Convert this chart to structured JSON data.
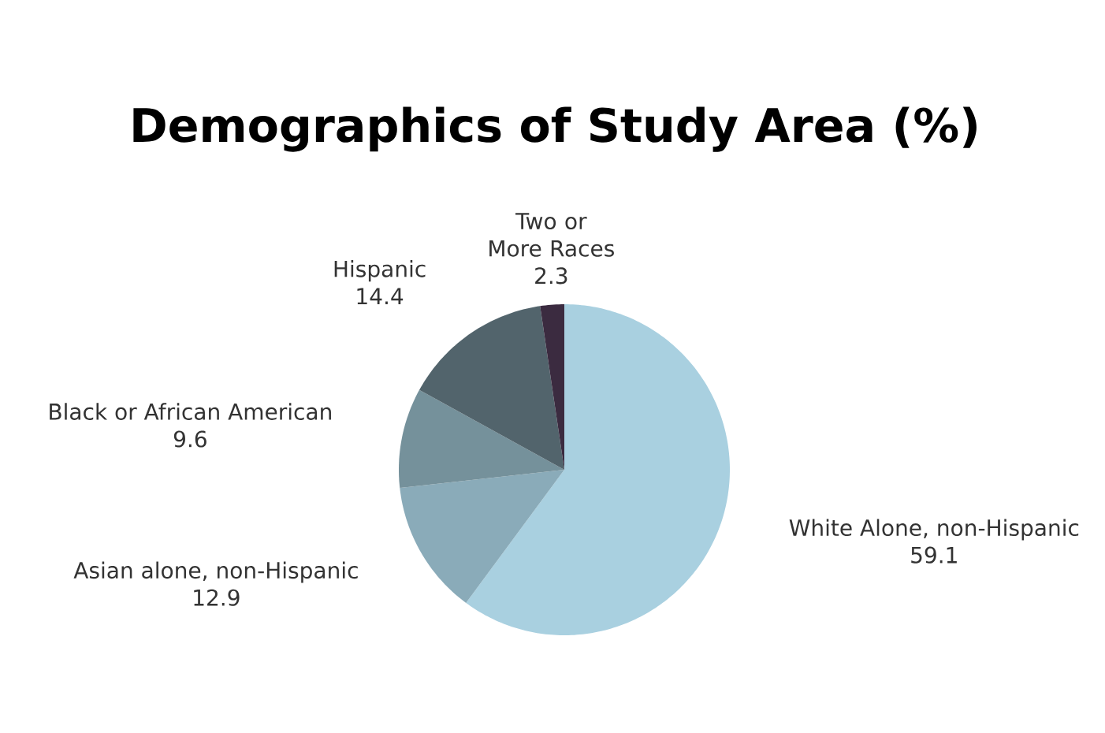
{
  "chart_data": {
    "type": "pie",
    "title": "Demographics of Study Area (%)",
    "categories": [
      "White Alone, non-Hispanic",
      "Asian alone, non-Hispanic",
      "Black or African American",
      "Hispanic",
      "Two or More Races"
    ],
    "values": [
      59.1,
      12.9,
      9.6,
      14.4,
      2.3
    ],
    "colors": [
      "#a9d0e0",
      "#8aabb9",
      "#75919b",
      "#52646c",
      "#3b2b40"
    ],
    "data_labels": true
  }
}
